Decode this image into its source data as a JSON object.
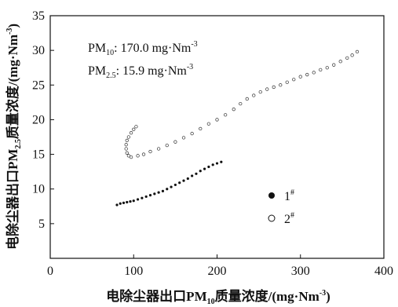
{
  "chart_data": {
    "type": "scatter",
    "xlabel": {
      "pre": "电除尘器出口PM",
      "sub": "10",
      "post": "质量浓度/(mg·Nm",
      "sup": "-3",
      "end": ")"
    },
    "ylabel": {
      "pre": "电除尘器出口PM",
      "sub": "2.5",
      "post": "质量浓度/(mg·Nm",
      "sup": "-3",
      "end": ")"
    },
    "xlim": [
      0,
      400
    ],
    "ylim": [
      0,
      35
    ],
    "xticks": [
      "0",
      "100",
      "200",
      "300",
      "400"
    ],
    "yticks": [
      "5",
      "10",
      "15",
      "20",
      "25",
      "30",
      "35"
    ],
    "xtick_values": [
      0,
      100,
      200,
      300,
      400
    ],
    "ytick_values": [
      5,
      10,
      15,
      20,
      25,
      30,
      35
    ],
    "annotations": [
      {
        "pre": "PM",
        "sub": "10",
        "post": ": 170.0 mg·Nm",
        "sup": "-3"
      },
      {
        "pre": "PM",
        "sub": "2.5",
        "post": ": 15.9 mg·Nm",
        "sup": "-3"
      }
    ],
    "series": [
      {
        "name": "1",
        "name_sup": "#",
        "marker": "filled",
        "points": [
          [
            80,
            7.7
          ],
          [
            84,
            7.9
          ],
          [
            88,
            8.0
          ],
          [
            92,
            8.1
          ],
          [
            96,
            8.2
          ],
          [
            100,
            8.3
          ],
          [
            105,
            8.5
          ],
          [
            110,
            8.7
          ],
          [
            115,
            8.9
          ],
          [
            120,
            9.1
          ],
          [
            125,
            9.3
          ],
          [
            130,
            9.5
          ],
          [
            135,
            9.7
          ],
          [
            140,
            10.0
          ],
          [
            145,
            10.3
          ],
          [
            150,
            10.6
          ],
          [
            155,
            10.9
          ],
          [
            160,
            11.2
          ],
          [
            165,
            11.5
          ],
          [
            170,
            11.9
          ],
          [
            175,
            12.2
          ],
          [
            180,
            12.6
          ],
          [
            185,
            12.9
          ],
          [
            190,
            13.2
          ],
          [
            195,
            13.5
          ],
          [
            200,
            13.7
          ],
          [
            205,
            13.9
          ]
        ]
      },
      {
        "name": "2",
        "name_sup": "#",
        "marker": "open",
        "points": [
          [
            103,
            19.0
          ],
          [
            100,
            18.6
          ],
          [
            97,
            18.1
          ],
          [
            94,
            17.5
          ],
          [
            92,
            17.0
          ],
          [
            91,
            16.4
          ],
          [
            91,
            15.8
          ],
          [
            92,
            15.2
          ],
          [
            94,
            14.8
          ],
          [
            97,
            14.6
          ],
          [
            105,
            14.8
          ],
          [
            112,
            15.0
          ],
          [
            120,
            15.4
          ],
          [
            130,
            15.8
          ],
          [
            140,
            16.3
          ],
          [
            150,
            16.8
          ],
          [
            160,
            17.4
          ],
          [
            170,
            18.0
          ],
          [
            180,
            18.7
          ],
          [
            190,
            19.4
          ],
          [
            200,
            20.0
          ],
          [
            210,
            20.7
          ],
          [
            220,
            21.5
          ],
          [
            228,
            22.3
          ],
          [
            236,
            23.0
          ],
          [
            244,
            23.5
          ],
          [
            252,
            24.0
          ],
          [
            260,
            24.4
          ],
          [
            268,
            24.7
          ],
          [
            276,
            25.0
          ],
          [
            284,
            25.4
          ],
          [
            292,
            25.8
          ],
          [
            300,
            26.2
          ],
          [
            308,
            26.5
          ],
          [
            316,
            26.8
          ],
          [
            324,
            27.2
          ],
          [
            332,
            27.5
          ],
          [
            340,
            27.9
          ],
          [
            348,
            28.4
          ],
          [
            356,
            28.9
          ],
          [
            362,
            29.3
          ],
          [
            368,
            29.8
          ]
        ]
      }
    ]
  }
}
